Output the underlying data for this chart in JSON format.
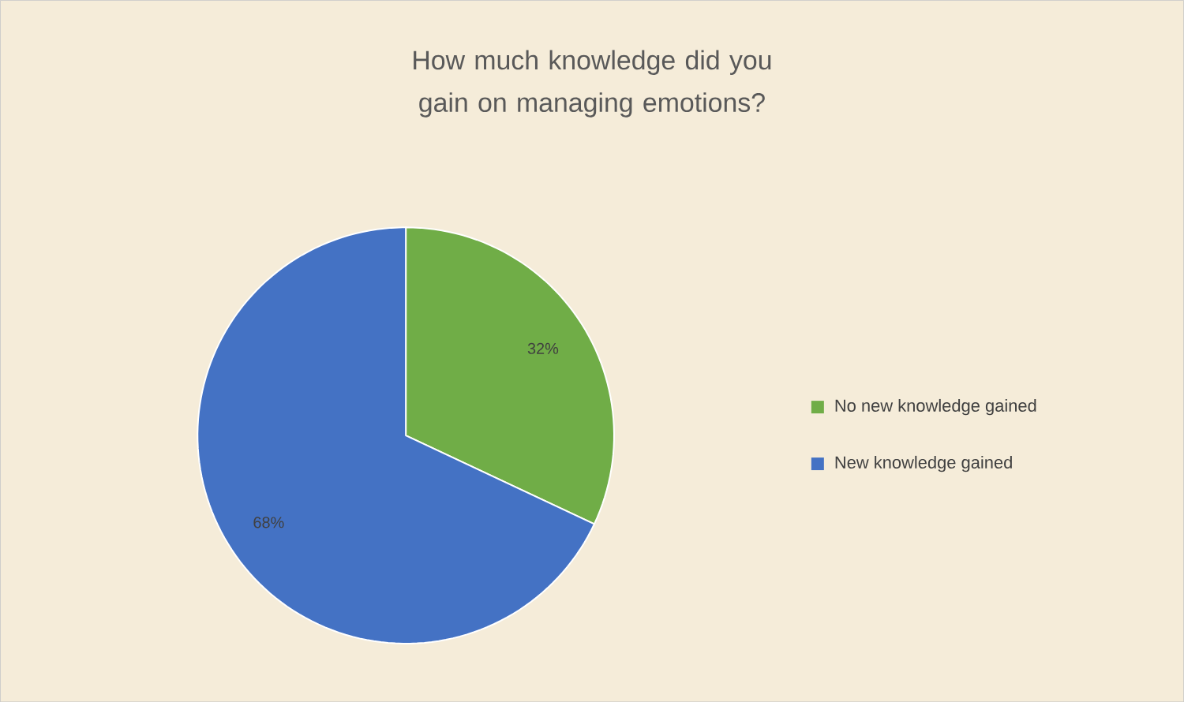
{
  "chart_data": {
    "type": "pie",
    "title": "How much knowledge did you gain on managing emotions?",
    "categories": [
      "No new knowledge gained",
      "New knowledge gained"
    ],
    "values": [
      32,
      68
    ],
    "value_labels": [
      "32%",
      "68%"
    ],
    "colors": [
      "#70ad47",
      "#4472c4"
    ],
    "legend": "right"
  }
}
